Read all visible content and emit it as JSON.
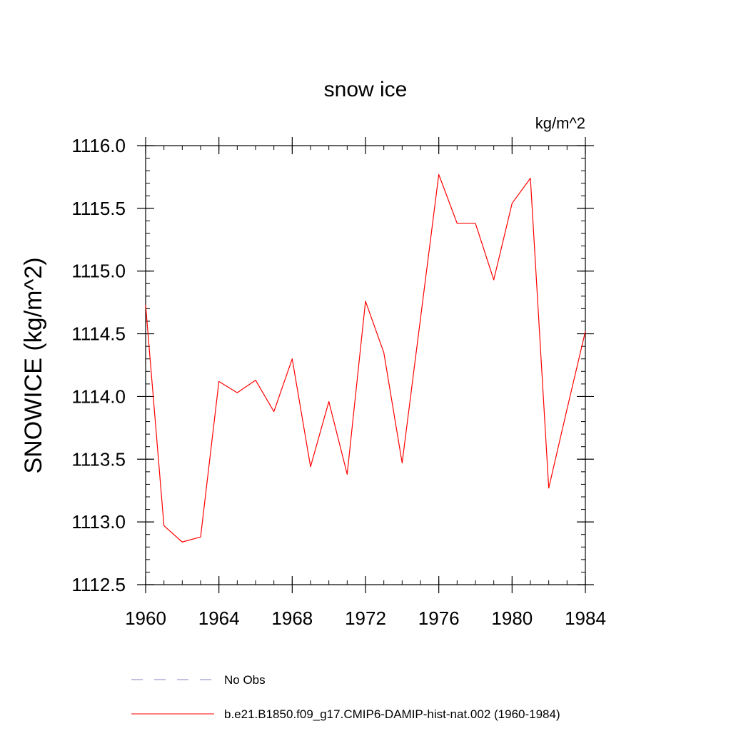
{
  "chart_data": {
    "type": "line",
    "title": "snow ice",
    "units_label": "kg/m^2",
    "ylabel": "SNOWICE  (kg/m^2)",
    "xlabel": "",
    "xlim": [
      1960,
      1984
    ],
    "ylim": [
      1112.5,
      1116.0
    ],
    "xticks": [
      1960,
      1964,
      1968,
      1972,
      1976,
      1980,
      1984
    ],
    "yticks": [
      "1112.5",
      "1113.0",
      "1113.5",
      "1114.0",
      "1114.5",
      "1115.0",
      "1115.5",
      "1116.0"
    ],
    "grid": false,
    "legend_position": "bottom",
    "series": [
      {
        "name": "No Obs",
        "color": "#8080c0",
        "style": "dashed",
        "x": [],
        "y": []
      },
      {
        "name": "b.e21.B1850.f09_g17.CMIP6-DAMIP-hist-nat.002 (1960-1984)",
        "color": "#ff0000",
        "style": "solid",
        "x": [
          1960,
          1961,
          1962,
          1963,
          1964,
          1965,
          1966,
          1967,
          1968,
          1969,
          1970,
          1971,
          1972,
          1973,
          1974,
          1975,
          1976,
          1977,
          1978,
          1979,
          1980,
          1981,
          1982,
          1983,
          1984
        ],
        "y": [
          1114.73,
          1112.97,
          1112.84,
          1112.88,
          1114.12,
          1114.03,
          1114.13,
          1113.88,
          1114.3,
          1113.44,
          1113.96,
          1113.38,
          1114.76,
          1114.35,
          1113.47,
          1114.62,
          1115.77,
          1115.38,
          1115.38,
          1114.93,
          1115.54,
          1115.74,
          1113.27,
          1113.9,
          1114.52
        ]
      }
    ]
  }
}
